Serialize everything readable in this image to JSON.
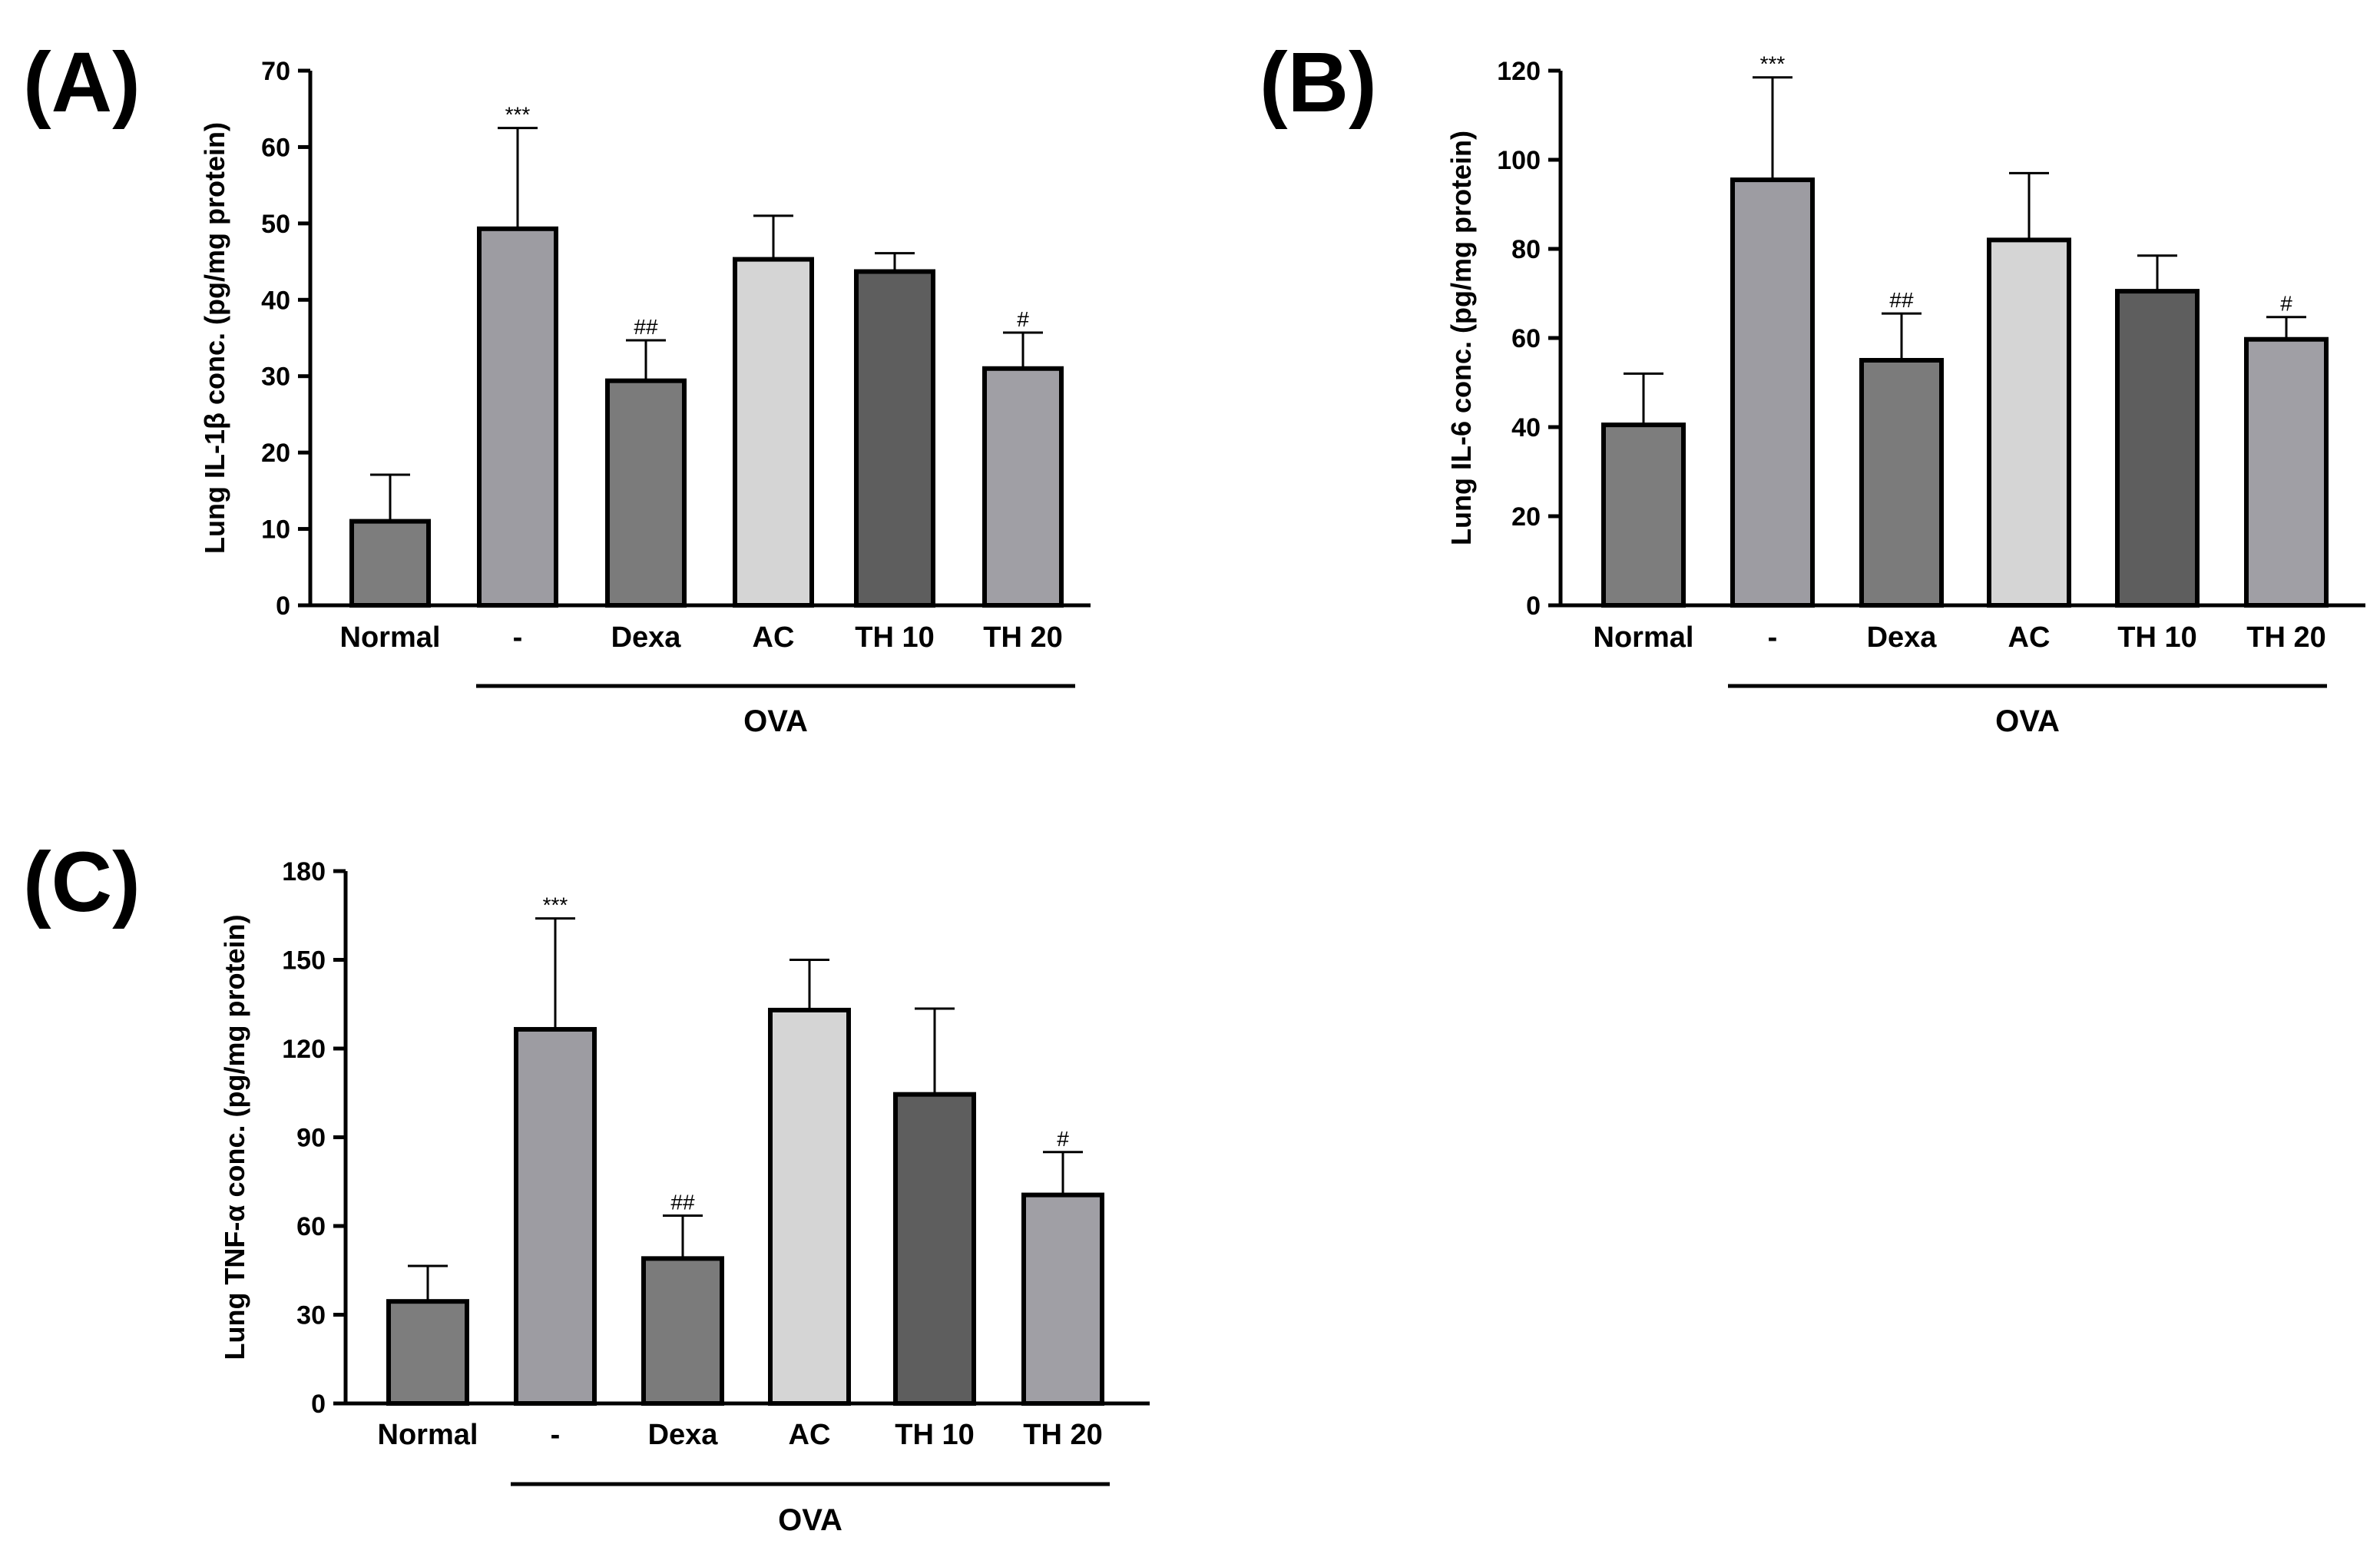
{
  "colors": {
    "Normal": "#7d7d7d",
    "-": "#9d9ca2",
    "Dexa": "#7b7b7b",
    "AC": "#d5d5d5",
    "TH 10": "#5e5e5e",
    "TH 20": "#a09fa5"
  },
  "chart_data": [
    {
      "type": "bar",
      "panel": "(A)",
      "ylabel": "Lung IL-1β conc. (pg/mg protein)",
      "categories": [
        "Normal",
        "-",
        "Dexa",
        "AC",
        "TH 10",
        "TH 20"
      ],
      "values": [
        11,
        49.3,
        29.4,
        45.3,
        43.7,
        31.0
      ],
      "errors": [
        6.1,
        13.2,
        5.3,
        5.7,
        2.4,
        4.7
      ],
      "significance": [
        "",
        "***",
        "##",
        "",
        "",
        "#"
      ],
      "ylim": [
        0,
        70
      ],
      "yticks": [
        0,
        10,
        20,
        30,
        40,
        50,
        60,
        70
      ],
      "yticklabels": [
        "0",
        "10",
        "20",
        "30",
        "40",
        "50",
        "60",
        "70"
      ],
      "group_label": "OVA"
    },
    {
      "type": "bar",
      "panel": "(B)",
      "ylabel": "Lung IL-6 conc. (pg/mg protein)",
      "categories": [
        "Normal",
        "-",
        "Dexa",
        "AC",
        "TH 10",
        "TH 20"
      ],
      "values": [
        40.5,
        95.5,
        55.0,
        82.0,
        70.5,
        59.7
      ],
      "errors": [
        11.5,
        23.0,
        10.5,
        15.0,
        8.0,
        5.0
      ],
      "significance": [
        "",
        "***",
        "##",
        "",
        "",
        "#"
      ],
      "ylim": [
        0,
        120
      ],
      "yticks": [
        0,
        20,
        40,
        60,
        80,
        100,
        120
      ],
      "yticklabels": [
        "0",
        "20",
        "40",
        "60",
        "80",
        "100",
        "120"
      ],
      "group_label": "OVA"
    },
    {
      "type": "bar",
      "panel": "(C)",
      "ylabel": "Lung TNF-α conc. (pg/mg protein)",
      "categories": [
        "Normal",
        "-",
        "Dexa",
        "AC",
        "TH 10",
        "TH 20"
      ],
      "values": [
        34.5,
        126.5,
        49.0,
        133.0,
        104.5,
        70.5
      ],
      "errors": [
        12.0,
        37.5,
        14.5,
        17.0,
        29.0,
        14.5
      ],
      "significance": [
        "",
        "***",
        "##",
        "",
        "",
        "#"
      ],
      "ylim": [
        0,
        180
      ],
      "yticks": [
        0,
        30,
        60,
        90,
        120,
        150,
        180
      ],
      "yticklabels": [
        "0",
        "30",
        "60",
        "90",
        "120",
        "150",
        "180"
      ],
      "group_label": "OVA"
    }
  ]
}
